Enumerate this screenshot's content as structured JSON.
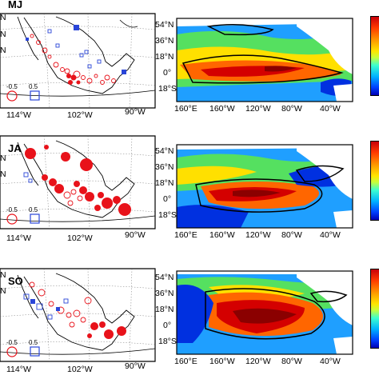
{
  "panels": [
    {
      "tag": "MJ",
      "map_lat_labels": [
        "N",
        "N",
        "N"
      ],
      "map_lon_labels": [
        "114°W",
        "102°W",
        "90°W"
      ],
      "legend": [
        "-0.5",
        "0.5"
      ],
      "ocean_lat_labels": [
        "54°N",
        "36°N",
        "18°N",
        "0°",
        "18°S"
      ],
      "ocean_lon_labels": [
        "160°E",
        "160°W",
        "120°W",
        "80°W",
        "40°W"
      ]
    },
    {
      "tag": "JA",
      "map_lat_labels": [
        "N",
        "N"
      ],
      "map_lon_labels": [
        "114°W",
        "102°W",
        "90°W"
      ],
      "legend": [
        "-0.5",
        "0.5"
      ],
      "ocean_lat_labels": [
        "54°N",
        "36°N",
        "18°N",
        "0°",
        "18°S"
      ],
      "ocean_lon_labels": [
        "160°E",
        "160°W",
        "120°W",
        "80°W",
        "40°W"
      ]
    },
    {
      "tag": "SO",
      "map_lat_labels": [
        "N",
        "N"
      ],
      "map_lon_labels": [
        "114°W",
        "102°W",
        "90°W"
      ],
      "legend": [
        "-0.5",
        "0.5"
      ],
      "ocean_lat_labels": [
        "54°N",
        "36°N",
        "18°N",
        "0°",
        "18°S"
      ],
      "ocean_lon_labels": [
        "160°E",
        "160°W",
        "120°W",
        "80°W",
        "40°W"
      ]
    }
  ],
  "colors": {
    "positive_marker": "#e8121a",
    "negative_marker": "#2a45d8",
    "warm": "#d40000",
    "cold": "#0030e0"
  }
}
